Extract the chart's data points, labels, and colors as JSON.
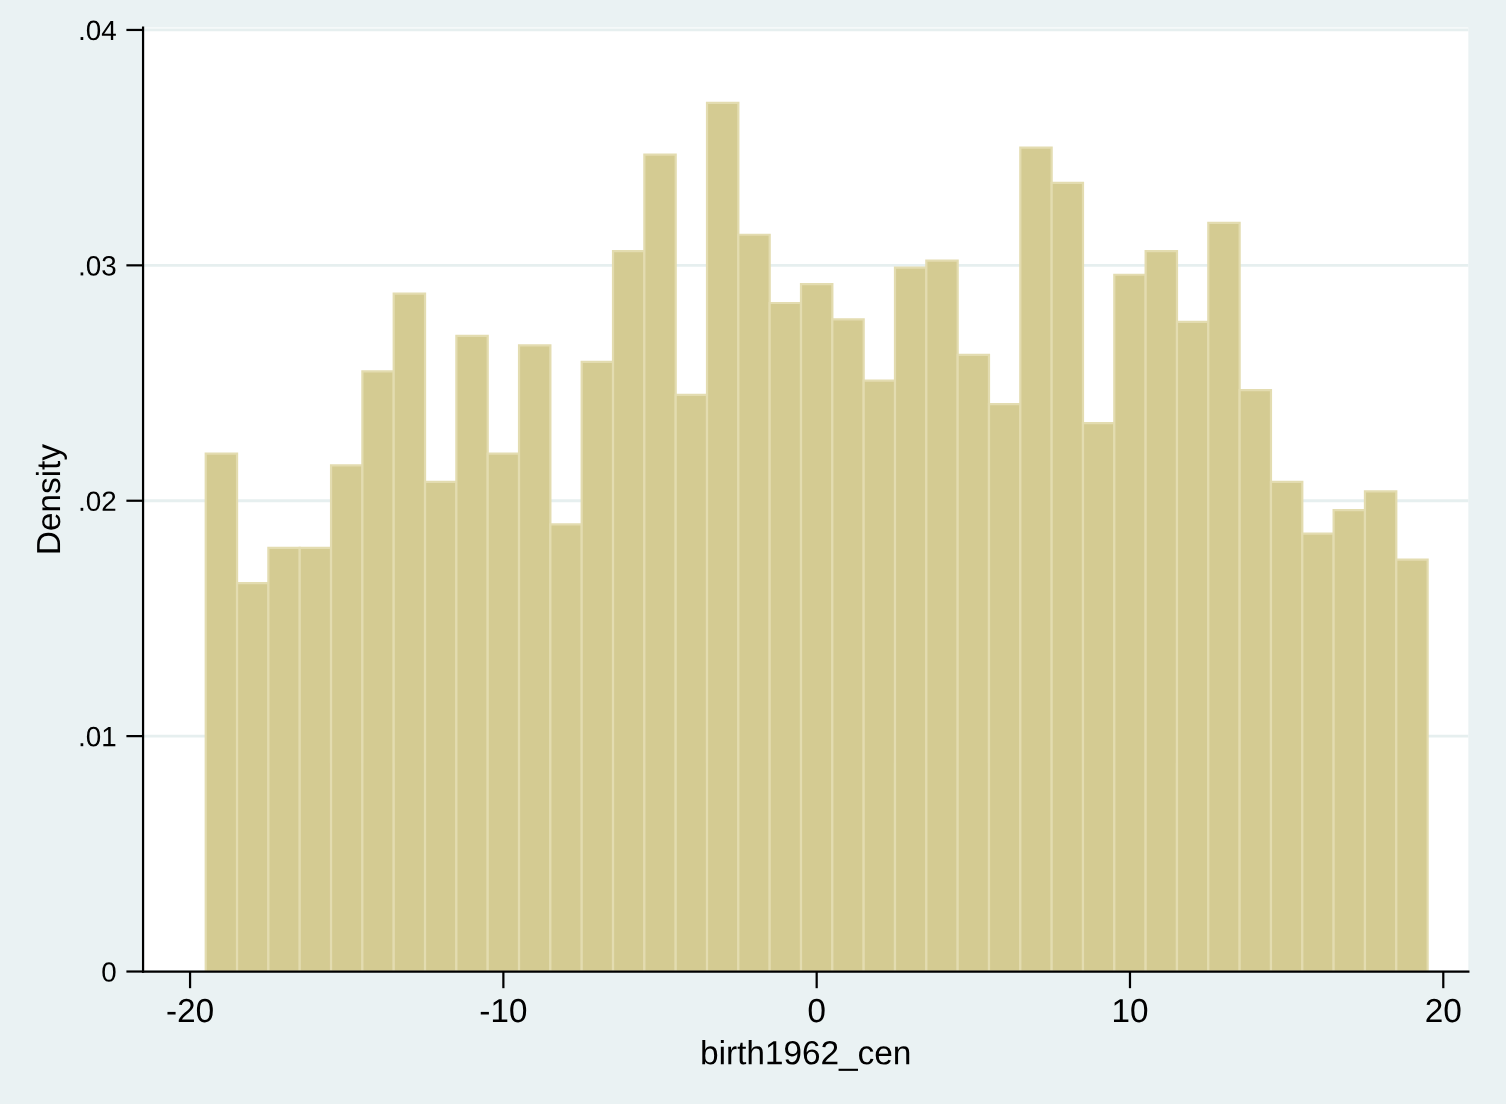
{
  "chart_data": {
    "type": "histogram",
    "xlabel": "birth1962_cen",
    "ylabel": "Density",
    "bins": [
      -19.5,
      -18.5,
      -17.5,
      -16.5,
      -15.5,
      -14.5,
      -13.5,
      -12.5,
      -11.5,
      -10.5,
      -9.5,
      -8.5,
      -7.5,
      -6.5,
      -5.5,
      -4.5,
      -3.5,
      -2.5,
      -1.5,
      -0.5,
      0.5,
      1.5,
      2.5,
      3.5,
      4.5,
      5.5,
      6.5,
      7.5,
      8.5,
      9.5,
      10.5,
      11.5,
      12.5,
      13.5,
      14.5,
      15.5,
      16.5,
      17.5,
      18.5,
      19.5
    ],
    "values": [
      0.022,
      0.0165,
      0.018,
      0.018,
      0.0215,
      0.0255,
      0.0288,
      0.0208,
      0.027,
      0.022,
      0.0266,
      0.019,
      0.0259,
      0.0306,
      0.0347,
      0.0245,
      0.0369,
      0.0313,
      0.0284,
      0.0292,
      0.0277,
      0.0251,
      0.0299,
      0.0302,
      0.0262,
      0.0241,
      0.035,
      0.0335,
      0.0233,
      0.0296,
      0.0306,
      0.0276,
      0.0318,
      0.0247,
      0.0208,
      0.0186,
      0.0196,
      0.0204,
      0.0175
    ],
    "color": "#d4cb92",
    "xlim": [
      -21.5,
      20.8
    ],
    "ylim": [
      0,
      0.0401
    ],
    "xticks": [
      -20,
      -10,
      0,
      10,
      20
    ],
    "yticks": [
      {
        "value": 0,
        "label": "0"
      },
      {
        "value": 0.01,
        "label": ".01"
      },
      {
        "value": 0.02,
        "label": ".02"
      },
      {
        "value": 0.03,
        "label": ".03"
      },
      {
        "value": 0.04,
        "label": ".04"
      }
    ],
    "grid": "y"
  }
}
